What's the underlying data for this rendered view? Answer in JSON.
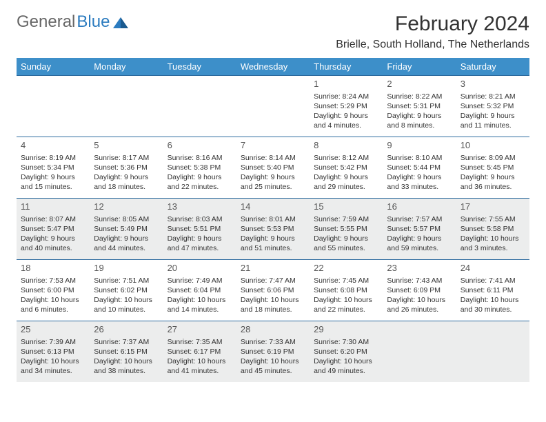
{
  "logo": {
    "text_gray": "General",
    "text_blue": "Blue"
  },
  "title": "February 2024",
  "location": "Brielle, South Holland, The Netherlands",
  "colors": {
    "header_bg": "#3d8fc9",
    "header_text": "#ffffff",
    "row_border": "#2b6a9e",
    "shaded_bg": "#eceded",
    "text": "#333333",
    "logo_gray": "#666666",
    "logo_blue": "#2b7bbf"
  },
  "typography": {
    "title_fontsize": 30,
    "location_fontsize": 16,
    "header_fontsize": 13,
    "daynum_fontsize": 13,
    "body_fontsize": 10.5
  },
  "day_names": [
    "Sunday",
    "Monday",
    "Tuesday",
    "Wednesday",
    "Thursday",
    "Friday",
    "Saturday"
  ],
  "weeks": [
    [
      {
        "n": "",
        "shaded": false,
        "empty": true
      },
      {
        "n": "",
        "shaded": false,
        "empty": true
      },
      {
        "n": "",
        "shaded": false,
        "empty": true
      },
      {
        "n": "",
        "shaded": false,
        "empty": true
      },
      {
        "n": "1",
        "shaded": false,
        "sunrise": "Sunrise: 8:24 AM",
        "sunset": "Sunset: 5:29 PM",
        "daylight1": "Daylight: 9 hours",
        "daylight2": "and 4 minutes."
      },
      {
        "n": "2",
        "shaded": false,
        "sunrise": "Sunrise: 8:22 AM",
        "sunset": "Sunset: 5:31 PM",
        "daylight1": "Daylight: 9 hours",
        "daylight2": "and 8 minutes."
      },
      {
        "n": "3",
        "shaded": false,
        "sunrise": "Sunrise: 8:21 AM",
        "sunset": "Sunset: 5:32 PM",
        "daylight1": "Daylight: 9 hours",
        "daylight2": "and 11 minutes."
      }
    ],
    [
      {
        "n": "4",
        "shaded": false,
        "sunrise": "Sunrise: 8:19 AM",
        "sunset": "Sunset: 5:34 PM",
        "daylight1": "Daylight: 9 hours",
        "daylight2": "and 15 minutes."
      },
      {
        "n": "5",
        "shaded": false,
        "sunrise": "Sunrise: 8:17 AM",
        "sunset": "Sunset: 5:36 PM",
        "daylight1": "Daylight: 9 hours",
        "daylight2": "and 18 minutes."
      },
      {
        "n": "6",
        "shaded": false,
        "sunrise": "Sunrise: 8:16 AM",
        "sunset": "Sunset: 5:38 PM",
        "daylight1": "Daylight: 9 hours",
        "daylight2": "and 22 minutes."
      },
      {
        "n": "7",
        "shaded": false,
        "sunrise": "Sunrise: 8:14 AM",
        "sunset": "Sunset: 5:40 PM",
        "daylight1": "Daylight: 9 hours",
        "daylight2": "and 25 minutes."
      },
      {
        "n": "8",
        "shaded": false,
        "sunrise": "Sunrise: 8:12 AM",
        "sunset": "Sunset: 5:42 PM",
        "daylight1": "Daylight: 9 hours",
        "daylight2": "and 29 minutes."
      },
      {
        "n": "9",
        "shaded": false,
        "sunrise": "Sunrise: 8:10 AM",
        "sunset": "Sunset: 5:44 PM",
        "daylight1": "Daylight: 9 hours",
        "daylight2": "and 33 minutes."
      },
      {
        "n": "10",
        "shaded": false,
        "sunrise": "Sunrise: 8:09 AM",
        "sunset": "Sunset: 5:45 PM",
        "daylight1": "Daylight: 9 hours",
        "daylight2": "and 36 minutes."
      }
    ],
    [
      {
        "n": "11",
        "shaded": true,
        "sunrise": "Sunrise: 8:07 AM",
        "sunset": "Sunset: 5:47 PM",
        "daylight1": "Daylight: 9 hours",
        "daylight2": "and 40 minutes."
      },
      {
        "n": "12",
        "shaded": true,
        "sunrise": "Sunrise: 8:05 AM",
        "sunset": "Sunset: 5:49 PM",
        "daylight1": "Daylight: 9 hours",
        "daylight2": "and 44 minutes."
      },
      {
        "n": "13",
        "shaded": true,
        "sunrise": "Sunrise: 8:03 AM",
        "sunset": "Sunset: 5:51 PM",
        "daylight1": "Daylight: 9 hours",
        "daylight2": "and 47 minutes."
      },
      {
        "n": "14",
        "shaded": true,
        "sunrise": "Sunrise: 8:01 AM",
        "sunset": "Sunset: 5:53 PM",
        "daylight1": "Daylight: 9 hours",
        "daylight2": "and 51 minutes."
      },
      {
        "n": "15",
        "shaded": true,
        "sunrise": "Sunrise: 7:59 AM",
        "sunset": "Sunset: 5:55 PM",
        "daylight1": "Daylight: 9 hours",
        "daylight2": "and 55 minutes."
      },
      {
        "n": "16",
        "shaded": true,
        "sunrise": "Sunrise: 7:57 AM",
        "sunset": "Sunset: 5:57 PM",
        "daylight1": "Daylight: 9 hours",
        "daylight2": "and 59 minutes."
      },
      {
        "n": "17",
        "shaded": true,
        "sunrise": "Sunrise: 7:55 AM",
        "sunset": "Sunset: 5:58 PM",
        "daylight1": "Daylight: 10 hours",
        "daylight2": "and 3 minutes."
      }
    ],
    [
      {
        "n": "18",
        "shaded": false,
        "sunrise": "Sunrise: 7:53 AM",
        "sunset": "Sunset: 6:00 PM",
        "daylight1": "Daylight: 10 hours",
        "daylight2": "and 6 minutes."
      },
      {
        "n": "19",
        "shaded": false,
        "sunrise": "Sunrise: 7:51 AM",
        "sunset": "Sunset: 6:02 PM",
        "daylight1": "Daylight: 10 hours",
        "daylight2": "and 10 minutes."
      },
      {
        "n": "20",
        "shaded": false,
        "sunrise": "Sunrise: 7:49 AM",
        "sunset": "Sunset: 6:04 PM",
        "daylight1": "Daylight: 10 hours",
        "daylight2": "and 14 minutes."
      },
      {
        "n": "21",
        "shaded": false,
        "sunrise": "Sunrise: 7:47 AM",
        "sunset": "Sunset: 6:06 PM",
        "daylight1": "Daylight: 10 hours",
        "daylight2": "and 18 minutes."
      },
      {
        "n": "22",
        "shaded": false,
        "sunrise": "Sunrise: 7:45 AM",
        "sunset": "Sunset: 6:08 PM",
        "daylight1": "Daylight: 10 hours",
        "daylight2": "and 22 minutes."
      },
      {
        "n": "23",
        "shaded": false,
        "sunrise": "Sunrise: 7:43 AM",
        "sunset": "Sunset: 6:09 PM",
        "daylight1": "Daylight: 10 hours",
        "daylight2": "and 26 minutes."
      },
      {
        "n": "24",
        "shaded": false,
        "sunrise": "Sunrise: 7:41 AM",
        "sunset": "Sunset: 6:11 PM",
        "daylight1": "Daylight: 10 hours",
        "daylight2": "and 30 minutes."
      }
    ],
    [
      {
        "n": "25",
        "shaded": true,
        "sunrise": "Sunrise: 7:39 AM",
        "sunset": "Sunset: 6:13 PM",
        "daylight1": "Daylight: 10 hours",
        "daylight2": "and 34 minutes."
      },
      {
        "n": "26",
        "shaded": true,
        "sunrise": "Sunrise: 7:37 AM",
        "sunset": "Sunset: 6:15 PM",
        "daylight1": "Daylight: 10 hours",
        "daylight2": "and 38 minutes."
      },
      {
        "n": "27",
        "shaded": true,
        "sunrise": "Sunrise: 7:35 AM",
        "sunset": "Sunset: 6:17 PM",
        "daylight1": "Daylight: 10 hours",
        "daylight2": "and 41 minutes."
      },
      {
        "n": "28",
        "shaded": true,
        "sunrise": "Sunrise: 7:33 AM",
        "sunset": "Sunset: 6:19 PM",
        "daylight1": "Daylight: 10 hours",
        "daylight2": "and 45 minutes."
      },
      {
        "n": "29",
        "shaded": true,
        "sunrise": "Sunrise: 7:30 AM",
        "sunset": "Sunset: 6:20 PM",
        "daylight1": "Daylight: 10 hours",
        "daylight2": "and 49 minutes."
      },
      {
        "n": "",
        "shaded": true,
        "empty": true
      },
      {
        "n": "",
        "shaded": true,
        "empty": true
      }
    ]
  ]
}
